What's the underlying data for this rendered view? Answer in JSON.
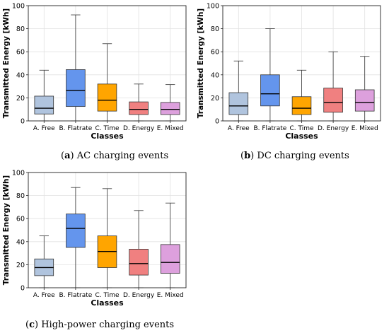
{
  "chart_data": [
    {
      "type": "box",
      "caption_letter": "a",
      "caption_text": "AC charging events",
      "xlabel": "Classes",
      "ylabel": "Transmitted Energy [kWh]",
      "ylim": [
        0,
        100
      ],
      "yticks": [
        0,
        20,
        40,
        60,
        80,
        100
      ],
      "grid": true,
      "categories": [
        "A. Free",
        "B. Flatrate",
        "C. Time",
        "D. Energy",
        "E. Mixed"
      ],
      "colors": [
        "#b0c4de",
        "#6495ed",
        "#ffa500",
        "#f08080",
        "#dda0dd"
      ],
      "boxes": [
        {
          "min": 0,
          "q1": 6,
          "median": 11,
          "q3": 21.5,
          "max": 44
        },
        {
          "min": 0,
          "q1": 12.5,
          "median": 26.5,
          "q3": 44.5,
          "max": 92
        },
        {
          "min": 0,
          "q1": 8.5,
          "median": 18,
          "q3": 32,
          "max": 67
        },
        {
          "min": 0,
          "q1": 5.5,
          "median": 10,
          "q3": 16.5,
          "max": 32
        },
        {
          "min": 0,
          "q1": 5.5,
          "median": 10,
          "q3": 16,
          "max": 31.5
        }
      ]
    },
    {
      "type": "box",
      "caption_letter": "b",
      "caption_text": "DC charging events",
      "xlabel": "Classes",
      "ylabel": "Transmitted Energy [kWh]",
      "ylim": [
        0,
        100
      ],
      "yticks": [
        0,
        20,
        40,
        60,
        80,
        100
      ],
      "grid": true,
      "categories": [
        "A. Free",
        "B. Flatrate",
        "C. Time",
        "D. Energy",
        "E. Mixed"
      ],
      "colors": [
        "#b0c4de",
        "#6495ed",
        "#ffa500",
        "#f08080",
        "#dda0dd"
      ],
      "boxes": [
        {
          "min": 0,
          "q1": 5.5,
          "median": 13,
          "q3": 24.5,
          "max": 52
        },
        {
          "min": 0,
          "q1": 13,
          "median": 23.5,
          "q3": 40,
          "max": 80
        },
        {
          "min": 0,
          "q1": 5.5,
          "median": 11,
          "q3": 21,
          "max": 44
        },
        {
          "min": 0,
          "q1": 7.5,
          "median": 16,
          "q3": 28.5,
          "max": 60
        },
        {
          "min": 0,
          "q1": 8.5,
          "median": 16,
          "q3": 27,
          "max": 56
        }
      ]
    },
    {
      "type": "box",
      "caption_letter": "c",
      "caption_text": "High-power charging events",
      "xlabel": "Classes",
      "ylabel": "Transmitted Energy [kWh]",
      "ylim": [
        0,
        100
      ],
      "yticks": [
        0,
        20,
        40,
        60,
        80,
        100
      ],
      "grid": true,
      "categories": [
        "A. Free",
        "B. Flatrate",
        "C. Time",
        "D. Energy",
        "E. Mixed"
      ],
      "colors": [
        "#b0c4de",
        "#6495ed",
        "#ffa500",
        "#f08080",
        "#dda0dd"
      ],
      "boxes": [
        {
          "min": 0,
          "q1": 10.5,
          "median": 17.5,
          "q3": 25,
          "max": 45
        },
        {
          "min": 0,
          "q1": 35,
          "median": 51.5,
          "q3": 64,
          "max": 87
        },
        {
          "min": 0,
          "q1": 17.5,
          "median": 31.5,
          "q3": 45,
          "max": 86
        },
        {
          "min": 0,
          "q1": 11,
          "median": 21,
          "q3": 33.5,
          "max": 67
        },
        {
          "min": 0,
          "q1": 12.5,
          "median": 22,
          "q3": 37.5,
          "max": 73.5
        }
      ]
    }
  ]
}
